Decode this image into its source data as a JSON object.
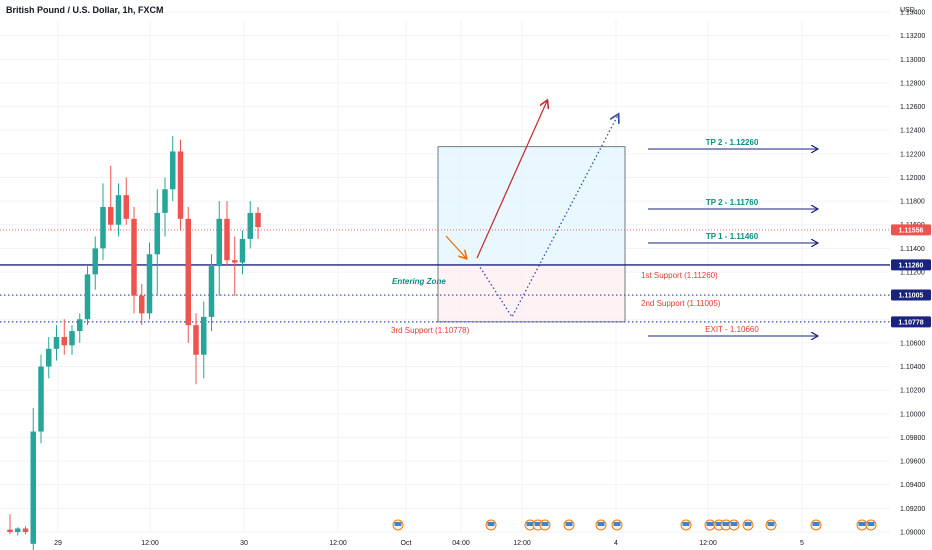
{
  "title": "British Pound / U.S. Dollar, 1h, FXCM",
  "currency": "USD",
  "colors": {
    "up": "#26a69a",
    "down": "#ef5350",
    "level": "#1a237e",
    "label": "#0a8f80",
    "support": "#e53935",
    "dotted": "#3949ab"
  },
  "chart_data": {
    "type": "candlestick",
    "y_range": [
      1.0895,
      1.135
    ],
    "y_ticks": [
      "1.13400",
      "1.13200",
      "1.13000",
      "1.12800",
      "1.12600",
      "1.12400",
      "1.12200",
      "1.12000",
      "1.11800",
      "1.11600",
      "1.11400",
      "1.11200",
      "1.11000",
      "1.10800",
      "1.10600",
      "1.10400",
      "1.10200",
      "1.10000",
      "1.09800",
      "1.09600",
      "1.09400",
      "1.09200",
      "1.09000"
    ],
    "x_ticks": [
      "29",
      "12:00",
      "30",
      "12:00",
      "Oct",
      "04:00",
      "12:00",
      "4",
      "12:00",
      "5"
    ],
    "candles": [
      {
        "o": 1.0902,
        "h": 1.0915,
        "l": 1.0898,
        "c": 1.09
      },
      {
        "o": 1.09,
        "h": 1.0904,
        "l": 1.0897,
        "c": 1.0903
      },
      {
        "o": 1.0903,
        "h": 1.0905,
        "l": 1.0898,
        "c": 1.09
      },
      {
        "o": 1.089,
        "h": 1.1005,
        "l": 1.088,
        "c": 1.0985
      },
      {
        "o": 1.0985,
        "h": 1.105,
        "l": 1.0975,
        "c": 1.104
      },
      {
        "o": 1.104,
        "h": 1.1065,
        "l": 1.103,
        "c": 1.1055
      },
      {
        "o": 1.1055,
        "h": 1.1075,
        "l": 1.1045,
        "c": 1.1065
      },
      {
        "o": 1.1065,
        "h": 1.108,
        "l": 1.105,
        "c": 1.1058
      },
      {
        "o": 1.1058,
        "h": 1.1075,
        "l": 1.105,
        "c": 1.107
      },
      {
        "o": 1.107,
        "h": 1.1085,
        "l": 1.106,
        "c": 1.108
      },
      {
        "o": 1.108,
        "h": 1.1125,
        "l": 1.1075,
        "c": 1.1118
      },
      {
        "o": 1.1118,
        "h": 1.115,
        "l": 1.1105,
        "c": 1.114
      },
      {
        "o": 1.114,
        "h": 1.1195,
        "l": 1.113,
        "c": 1.1175
      },
      {
        "o": 1.1175,
        "h": 1.121,
        "l": 1.1155,
        "c": 1.116
      },
      {
        "o": 1.116,
        "h": 1.1195,
        "l": 1.115,
        "c": 1.1185
      },
      {
        "o": 1.1185,
        "h": 1.12,
        "l": 1.116,
        "c": 1.1165
      },
      {
        "o": 1.1165,
        "h": 1.1175,
        "l": 1.1085,
        "c": 1.11
      },
      {
        "o": 1.11,
        "h": 1.111,
        "l": 1.1075,
        "c": 1.1085
      },
      {
        "o": 1.1085,
        "h": 1.1145,
        "l": 1.108,
        "c": 1.1135
      },
      {
        "o": 1.1135,
        "h": 1.119,
        "l": 1.11,
        "c": 1.117
      },
      {
        "o": 1.117,
        "h": 1.12,
        "l": 1.115,
        "c": 1.119
      },
      {
        "o": 1.119,
        "h": 1.1235,
        "l": 1.118,
        "c": 1.1222
      },
      {
        "o": 1.1222,
        "h": 1.1232,
        "l": 1.1155,
        "c": 1.1165
      },
      {
        "o": 1.1165,
        "h": 1.1175,
        "l": 1.106,
        "c": 1.1075
      },
      {
        "o": 1.1075,
        "h": 1.1085,
        "l": 1.1025,
        "c": 1.105
      },
      {
        "o": 1.105,
        "h": 1.1095,
        "l": 1.103,
        "c": 1.1082
      },
      {
        "o": 1.1082,
        "h": 1.1135,
        "l": 1.107,
        "c": 1.1125
      },
      {
        "o": 1.1125,
        "h": 1.118,
        "l": 1.11,
        "c": 1.1165
      },
      {
        "o": 1.1165,
        "h": 1.118,
        "l": 1.1125,
        "c": 1.113
      },
      {
        "o": 1.113,
        "h": 1.115,
        "l": 1.11,
        "c": 1.1128
      },
      {
        "o": 1.1128,
        "h": 1.1155,
        "l": 1.1118,
        "c": 1.1148
      },
      {
        "o": 1.1148,
        "h": 1.118,
        "l": 1.114,
        "c": 1.117
      },
      {
        "o": 1.117,
        "h": 1.1175,
        "l": 1.1148,
        "c": 1.1158
      }
    ],
    "levels": {
      "tp2_high": {
        "label": "TP 2 - 1.12260",
        "price": 1.1226
      },
      "tp2_mid": {
        "label": "TP 2 - 1.11760",
        "price": 1.1176
      },
      "tp1": {
        "label": "TP 1 - 1.11460",
        "price": 1.1146
      },
      "exit": {
        "label": "EXIT - 1.10660",
        "price": 1.1066
      }
    },
    "supports": [
      {
        "label": "1st Support (1.11260)",
        "price": 1.1126,
        "tag": "1.11260"
      },
      {
        "label": "2nd Support (1.11005)",
        "price": 1.11005,
        "tag": "1.11005"
      },
      {
        "label": "3rd Support (1.10778)",
        "price": 1.10778,
        "tag": "1.10778"
      }
    ],
    "current_price": {
      "price": 1.11556,
      "tag": "1.11556"
    },
    "zone_label": "Entering Zone",
    "target_box": {
      "top": 1.1226,
      "bottom": 1.1126
    },
    "entry_box": {
      "top": 1.1126,
      "bottom": 1.10778
    },
    "event_icon_count": 18
  }
}
